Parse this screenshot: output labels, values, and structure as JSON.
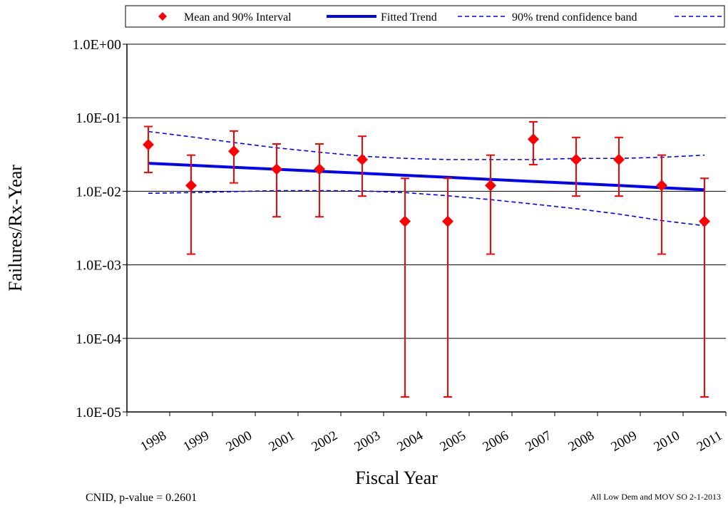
{
  "chart_data": {
    "type": "scatter",
    "title": "",
    "xlabel": "Fiscal Year",
    "ylabel": "Failures/Rx-Year",
    "yscale": "log",
    "ylim": [
      1e-05,
      1
    ],
    "y_ticks": [
      1e-05,
      0.0001,
      0.001,
      0.01,
      0.1,
      1
    ],
    "y_tick_labels": [
      "1.0E-05",
      "1.0E-04",
      "1.0E-03",
      "1.0E-02",
      "1.0E-01",
      "1.0E+00"
    ],
    "categories": [
      "1998",
      "1999",
      "2000",
      "2001",
      "2002",
      "2003",
      "2004",
      "2005",
      "2006",
      "2007",
      "2008",
      "2009",
      "2010",
      "2011"
    ],
    "grid": "horizontal",
    "legend_position": "top",
    "series": [
      {
        "name": "Mean and 90% Interval",
        "kind": "point-with-interval",
        "color": "#ff0000",
        "mean": [
          0.043,
          0.012,
          0.035,
          0.02,
          0.02,
          0.027,
          0.0039,
          0.0039,
          0.012,
          0.051,
          0.027,
          0.027,
          0.012,
          0.0039
        ],
        "lower": [
          0.018,
          0.0014,
          0.013,
          0.0045,
          0.0045,
          0.0086,
          1.6e-05,
          1.6e-05,
          0.0014,
          0.023,
          0.0086,
          0.0086,
          0.0014,
          1.6e-05
        ],
        "upper": [
          0.076,
          0.031,
          0.066,
          0.044,
          0.044,
          0.056,
          0.015,
          0.015,
          0.031,
          0.088,
          0.054,
          0.054,
          0.031,
          0.015
        ]
      },
      {
        "name": "Fitted Trend",
        "kind": "line",
        "color": "#0000ff",
        "values": [
          0.024,
          0.0226,
          0.0212,
          0.0199,
          0.0187,
          0.0176,
          0.0165,
          0.0155,
          0.0145,
          0.0136,
          0.0128,
          0.012,
          0.0112,
          0.0105
        ]
      },
      {
        "name": "90% trend confidence band",
        "kind": "dashed-band",
        "color": "#0000ff",
        "upper": [
          0.065,
          0.055,
          0.046,
          0.039,
          0.034,
          0.03,
          0.028,
          0.027,
          0.027,
          0.027,
          0.028,
          0.028,
          0.029,
          0.031
        ],
        "lower": [
          0.0094,
          0.0096,
          0.0099,
          0.0102,
          0.0102,
          0.0101,
          0.0096,
          0.0087,
          0.0077,
          0.0067,
          0.0058,
          0.0049,
          0.004,
          0.0034
        ]
      }
    ]
  },
  "footer": {
    "left": "CNID, p-value = 0.2601",
    "right": "All Low Dem and MOV SO 2-1-2013"
  }
}
